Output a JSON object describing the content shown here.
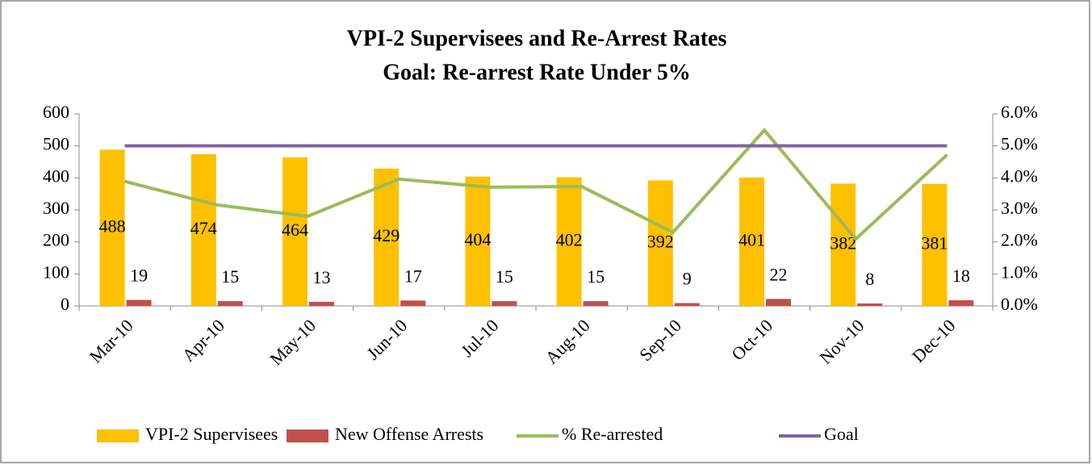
{
  "chart_data": {
    "type": "bar",
    "title": "VPI-2 Supervisees and Re-Arrest Rates",
    "subtitle": "Goal: Re-arrest Rate Under 5%",
    "categories": [
      "Mar-10",
      "Apr-10",
      "May-10",
      "Jun-10",
      "Jul-10",
      "Aug-10",
      "Sep-10",
      "Oct-10",
      "Nov-10",
      "Dec-10"
    ],
    "series": [
      {
        "name": "VPI-2 Supervisees",
        "color": "#FFC000",
        "type": "bar",
        "values": [
          488,
          474,
          464,
          429,
          404,
          402,
          392,
          401,
          382,
          381
        ]
      },
      {
        "name": "New Offense Arrests",
        "color": "#C0504D",
        "type": "bar",
        "values": [
          19,
          15,
          13,
          17,
          15,
          15,
          9,
          22,
          8,
          18
        ]
      },
      {
        "name": "% Re-arrested",
        "color": "#9BBB59",
        "type": "line",
        "axis": "y2",
        "values": [
          3.89,
          3.16,
          2.8,
          3.96,
          3.71,
          3.73,
          2.3,
          5.49,
          2.09,
          4.72
        ]
      },
      {
        "name": "Goal",
        "color": "#8064A2",
        "type": "line",
        "axis": "y2",
        "values": [
          5,
          5,
          5,
          5,
          5,
          5,
          5,
          5,
          5,
          5
        ]
      }
    ],
    "ylim": [
      0,
      600
    ],
    "yticks": [
      0,
      100,
      200,
      300,
      400,
      500,
      600
    ],
    "y2lim": [
      0,
      6
    ],
    "y2ticks": [
      {
        "value": 0,
        "label": "0.0%"
      },
      {
        "value": 1,
        "label": "1.0%"
      },
      {
        "value": 2,
        "label": "2.0%"
      },
      {
        "value": 3,
        "label": "3.0%"
      },
      {
        "value": 4,
        "label": "4.0%"
      },
      {
        "value": 5,
        "label": "5.0%"
      },
      {
        "value": 6,
        "label": "6.0%"
      }
    ],
    "legend": "bottom",
    "grid": false
  }
}
